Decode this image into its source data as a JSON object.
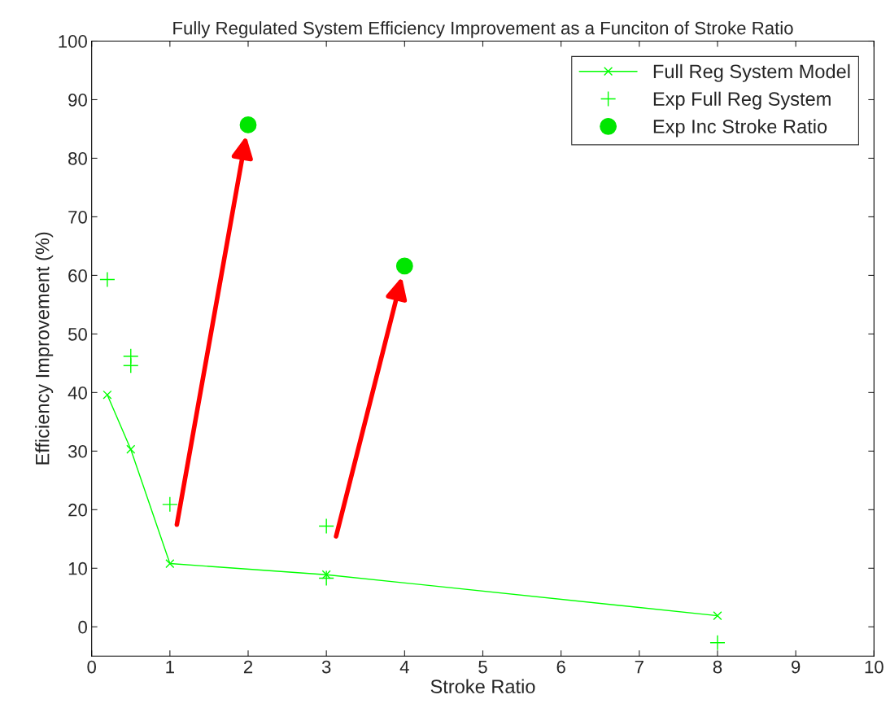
{
  "chart_data": {
    "type": "line",
    "title": "Fully Regulated System Efficiency Improvement as a Funciton of Stroke Ratio",
    "xlabel": "Stroke Ratio",
    "ylabel": "Efficiency Improvement (%)",
    "xlim": [
      0,
      10
    ],
    "xticks": [
      0,
      1,
      2,
      3,
      4,
      5,
      6,
      7,
      8,
      9,
      10
    ],
    "ylim": [
      -5,
      100
    ],
    "yticks": [
      0,
      10,
      20,
      30,
      40,
      50,
      60,
      70,
      80,
      90,
      100
    ],
    "grid": false,
    "legend": "top right",
    "series": [
      {
        "name": "Full Reg System Model",
        "marker": "cross",
        "color": "#00ff00",
        "x": [
          0.2,
          0.5,
          1,
          3,
          8
        ],
        "values": [
          39.6,
          30.3,
          10.8,
          8.9,
          1.9
        ]
      },
      {
        "name": "Exp Full Reg System",
        "type": "scatter",
        "marker": "plus",
        "color": "#00ff00",
        "x": [
          0.2,
          0.5,
          0.5,
          1,
          3,
          3,
          8
        ],
        "values": [
          59.3,
          46.2,
          44.6,
          20.9,
          17.2,
          8.3,
          -2.7
        ]
      },
      {
        "name": "Exp Inc Stroke Ratio",
        "type": "scatter",
        "marker": "circle",
        "color": "#00e600",
        "x": [
          2,
          4
        ],
        "values": [
          85.7,
          61.6
        ]
      }
    ]
  }
}
